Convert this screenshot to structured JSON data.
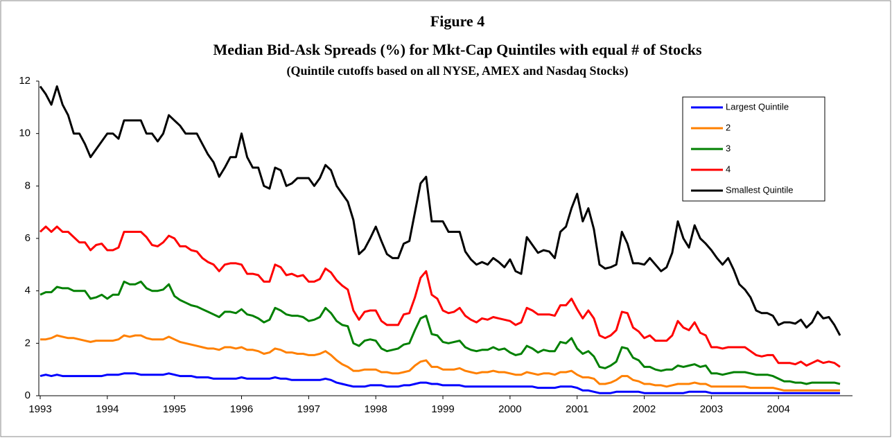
{
  "chart_data": {
    "type": "line",
    "figure_label": "Figure 4",
    "title": "Median Bid-Ask Spreads (%) for Mkt-Cap Quintiles with equal # of Stocks",
    "subtitle": "(Quintile cutoffs based on all NYSE, AMEX and Nasdaq Stocks)",
    "categories": [
      "1993",
      null,
      null,
      null,
      null,
      null,
      null,
      null,
      null,
      null,
      null,
      null,
      "1994",
      null,
      null,
      null,
      null,
      null,
      null,
      null,
      null,
      null,
      null,
      null,
      "1995",
      null,
      null,
      null,
      null,
      null,
      null,
      null,
      null,
      null,
      null,
      null,
      "1996",
      null,
      null,
      null,
      null,
      null,
      null,
      null,
      null,
      null,
      null,
      null,
      "1997",
      null,
      null,
      null,
      null,
      null,
      null,
      null,
      null,
      null,
      null,
      null,
      "1998",
      null,
      null,
      null,
      null,
      null,
      null,
      null,
      null,
      null,
      null,
      null,
      "1999",
      null,
      null,
      null,
      null,
      null,
      null,
      null,
      null,
      null,
      null,
      null,
      "2000",
      null,
      null,
      null,
      null,
      null,
      null,
      null,
      null,
      null,
      null,
      null,
      "2001",
      null,
      null,
      null,
      null,
      null,
      null,
      null,
      null,
      null,
      null,
      null,
      "2002",
      null,
      null,
      null,
      null,
      null,
      null,
      null,
      null,
      null,
      null,
      null,
      "2003",
      null,
      null,
      null,
      null,
      null,
      null,
      null,
      null,
      null,
      null,
      null,
      "2004",
      null,
      null,
      null,
      null,
      null,
      null,
      null,
      null,
      null,
      null,
      null
    ],
    "ylim": [
      0,
      12
    ],
    "yticks": [
      0,
      2,
      4,
      6,
      8,
      10,
      12
    ],
    "legend": "top-right",
    "series": [
      {
        "name": "Largest Quintile",
        "color": "#0000ff",
        "values": [
          0.75,
          0.8,
          0.75,
          0.8,
          0.75,
          0.75,
          0.75,
          0.75,
          0.75,
          0.75,
          0.75,
          0.75,
          0.8,
          0.8,
          0.8,
          0.85,
          0.85,
          0.85,
          0.8,
          0.8,
          0.8,
          0.8,
          0.8,
          0.85,
          0.8,
          0.75,
          0.75,
          0.75,
          0.7,
          0.7,
          0.7,
          0.65,
          0.65,
          0.65,
          0.65,
          0.65,
          0.7,
          0.65,
          0.65,
          0.65,
          0.65,
          0.65,
          0.7,
          0.65,
          0.65,
          0.6,
          0.6,
          0.6,
          0.6,
          0.6,
          0.6,
          0.65,
          0.6,
          0.5,
          0.45,
          0.4,
          0.35,
          0.35,
          0.35,
          0.4,
          0.4,
          0.4,
          0.35,
          0.35,
          0.35,
          0.4,
          0.4,
          0.45,
          0.5,
          0.5,
          0.45,
          0.45,
          0.4,
          0.4,
          0.4,
          0.4,
          0.35,
          0.35,
          0.35,
          0.35,
          0.35,
          0.35,
          0.35,
          0.35,
          0.35,
          0.35,
          0.35,
          0.35,
          0.35,
          0.3,
          0.3,
          0.3,
          0.3,
          0.35,
          0.35,
          0.35,
          0.3,
          0.2,
          0.2,
          0.15,
          0.1,
          0.1,
          0.1,
          0.15,
          0.15,
          0.15,
          0.15,
          0.15,
          0.1,
          0.1,
          0.1,
          0.1,
          0.1,
          0.1,
          0.1,
          0.1,
          0.15,
          0.15,
          0.15,
          0.15,
          0.1,
          0.1,
          0.1,
          0.1,
          0.1,
          0.1,
          0.1,
          0.1,
          0.1,
          0.1,
          0.1,
          0.1,
          0.1,
          0.1,
          0.1,
          0.1,
          0.1,
          0.1,
          0.1,
          0.1,
          0.1,
          0.1,
          0.1,
          0.1
        ]
      },
      {
        "name": "2",
        "color": "#ff8000",
        "values": [
          2.15,
          2.15,
          2.2,
          2.3,
          2.25,
          2.2,
          2.2,
          2.15,
          2.1,
          2.05,
          2.1,
          2.1,
          2.1,
          2.1,
          2.15,
          2.3,
          2.25,
          2.3,
          2.3,
          2.2,
          2.15,
          2.15,
          2.15,
          2.25,
          2.15,
          2.05,
          2.0,
          1.95,
          1.9,
          1.85,
          1.8,
          1.8,
          1.75,
          1.85,
          1.85,
          1.8,
          1.85,
          1.75,
          1.75,
          1.7,
          1.6,
          1.65,
          1.8,
          1.75,
          1.65,
          1.65,
          1.6,
          1.6,
          1.55,
          1.55,
          1.6,
          1.7,
          1.55,
          1.35,
          1.2,
          1.1,
          0.95,
          0.95,
          1.0,
          1.0,
          1.0,
          0.9,
          0.9,
          0.85,
          0.85,
          0.9,
          0.95,
          1.15,
          1.3,
          1.35,
          1.1,
          1.1,
          1.0,
          1.0,
          1.0,
          1.05,
          0.95,
          0.9,
          0.85,
          0.9,
          0.9,
          0.95,
          0.9,
          0.9,
          0.85,
          0.8,
          0.8,
          0.9,
          0.85,
          0.8,
          0.85,
          0.85,
          0.8,
          0.9,
          0.9,
          0.95,
          0.8,
          0.7,
          0.7,
          0.65,
          0.45,
          0.45,
          0.5,
          0.6,
          0.75,
          0.75,
          0.6,
          0.55,
          0.45,
          0.45,
          0.4,
          0.4,
          0.35,
          0.4,
          0.45,
          0.45,
          0.45,
          0.5,
          0.45,
          0.45,
          0.35,
          0.35,
          0.35,
          0.35,
          0.35,
          0.35,
          0.35,
          0.3,
          0.3,
          0.3,
          0.3,
          0.3,
          0.25,
          0.2,
          0.2,
          0.2,
          0.2,
          0.2,
          0.2,
          0.2,
          0.2,
          0.2,
          0.2,
          0.2
        ]
      },
      {
        "name": "3",
        "color": "#008000",
        "values": [
          3.85,
          3.95,
          3.95,
          4.15,
          4.1,
          4.1,
          4.0,
          4.0,
          4.0,
          3.7,
          3.75,
          3.85,
          3.7,
          3.85,
          3.85,
          4.35,
          4.25,
          4.25,
          4.35,
          4.1,
          4.0,
          4.0,
          4.05,
          4.25,
          3.8,
          3.65,
          3.55,
          3.45,
          3.4,
          3.3,
          3.2,
          3.1,
          3.0,
          3.2,
          3.2,
          3.15,
          3.3,
          3.1,
          3.05,
          2.95,
          2.8,
          2.9,
          3.35,
          3.25,
          3.1,
          3.05,
          3.05,
          3.0,
          2.85,
          2.9,
          3.0,
          3.35,
          3.15,
          2.85,
          2.7,
          2.65,
          2.0,
          1.9,
          2.1,
          2.15,
          2.1,
          1.8,
          1.7,
          1.75,
          1.8,
          1.95,
          2.0,
          2.5,
          2.95,
          3.05,
          2.35,
          2.3,
          2.05,
          2.0,
          2.05,
          2.1,
          1.85,
          1.75,
          1.7,
          1.75,
          1.75,
          1.85,
          1.75,
          1.8,
          1.65,
          1.55,
          1.6,
          1.9,
          1.8,
          1.65,
          1.75,
          1.7,
          1.7,
          2.05,
          2.0,
          2.2,
          1.8,
          1.6,
          1.7,
          1.5,
          1.1,
          1.05,
          1.15,
          1.3,
          1.85,
          1.8,
          1.45,
          1.35,
          1.1,
          1.1,
          1.0,
          0.95,
          1.0,
          1.0,
          1.15,
          1.1,
          1.15,
          1.2,
          1.1,
          1.15,
          0.85,
          0.85,
          0.8,
          0.85,
          0.9,
          0.9,
          0.9,
          0.85,
          0.8,
          0.8,
          0.8,
          0.75,
          0.65,
          0.55,
          0.55,
          0.5,
          0.5,
          0.45,
          0.5,
          0.5,
          0.5,
          0.5,
          0.5,
          0.45
        ]
      },
      {
        "name": "4",
        "color": "#ff0000",
        "values": [
          6.25,
          6.45,
          6.25,
          6.45,
          6.25,
          6.25,
          6.05,
          5.85,
          5.85,
          5.55,
          5.75,
          5.8,
          5.55,
          5.55,
          5.65,
          6.25,
          6.25,
          6.25,
          6.25,
          6.05,
          5.75,
          5.7,
          5.85,
          6.1,
          6.0,
          5.7,
          5.7,
          5.55,
          5.5,
          5.25,
          5.1,
          5.0,
          4.75,
          5.0,
          5.05,
          5.05,
          5.0,
          4.65,
          4.65,
          4.6,
          4.35,
          4.35,
          5.0,
          4.9,
          4.6,
          4.65,
          4.55,
          4.6,
          4.35,
          4.35,
          4.45,
          4.85,
          4.7,
          4.4,
          4.2,
          4.05,
          3.25,
          2.9,
          3.2,
          3.25,
          3.25,
          2.85,
          2.7,
          2.7,
          2.7,
          3.1,
          3.15,
          3.75,
          4.5,
          4.75,
          3.85,
          3.7,
          3.25,
          3.15,
          3.2,
          3.35,
          3.05,
          2.9,
          2.8,
          2.95,
          2.9,
          3.0,
          2.95,
          2.9,
          2.85,
          2.7,
          2.8,
          3.35,
          3.25,
          3.1,
          3.1,
          3.1,
          3.05,
          3.45,
          3.45,
          3.7,
          3.3,
          2.95,
          3.25,
          2.95,
          2.3,
          2.2,
          2.3,
          2.5,
          3.2,
          3.15,
          2.6,
          2.45,
          2.2,
          2.3,
          2.1,
          2.1,
          2.1,
          2.3,
          2.85,
          2.6,
          2.5,
          2.8,
          2.4,
          2.3,
          1.85,
          1.85,
          1.8,
          1.85,
          1.85,
          1.85,
          1.85,
          1.7,
          1.55,
          1.5,
          1.55,
          1.55,
          1.25,
          1.25,
          1.25,
          1.2,
          1.3,
          1.15,
          1.25,
          1.35,
          1.25,
          1.3,
          1.25,
          1.1
        ]
      },
      {
        "name": "Smallest Quintile",
        "color": "#000000",
        "values": [
          11.8,
          11.5,
          11.1,
          11.8,
          11.1,
          10.7,
          10.0,
          10.0,
          9.6,
          9.1,
          9.4,
          9.7,
          10.0,
          10.0,
          9.8,
          10.5,
          10.5,
          10.5,
          10.5,
          10.0,
          10.0,
          9.7,
          10.0,
          10.7,
          10.5,
          10.3,
          10.0,
          10.0,
          10.0,
          9.6,
          9.2,
          8.9,
          8.35,
          8.7,
          9.1,
          9.1,
          10.0,
          9.1,
          8.7,
          8.7,
          8.0,
          7.9,
          8.7,
          8.6,
          8.0,
          8.1,
          8.3,
          8.3,
          8.3,
          8.0,
          8.3,
          8.8,
          8.6,
          8.0,
          7.7,
          7.4,
          6.7,
          5.4,
          5.6,
          6.0,
          6.45,
          5.9,
          5.4,
          5.25,
          5.25,
          5.8,
          5.9,
          7.0,
          8.1,
          8.35,
          6.65,
          6.65,
          6.65,
          6.25,
          6.25,
          6.25,
          5.5,
          5.2,
          5.0,
          5.1,
          5.0,
          5.25,
          5.1,
          4.9,
          5.2,
          4.75,
          4.65,
          6.05,
          5.75,
          5.45,
          5.55,
          5.5,
          5.25,
          6.25,
          6.45,
          7.15,
          7.7,
          6.65,
          7.15,
          6.35,
          5.0,
          4.85,
          4.9,
          5.0,
          6.25,
          5.8,
          5.05,
          5.05,
          5.0,
          5.25,
          5.0,
          4.75,
          4.9,
          5.45,
          6.65,
          6.0,
          5.65,
          6.5,
          6.0,
          5.8,
          5.55,
          5.25,
          5.0,
          5.25,
          4.8,
          4.25,
          4.05,
          3.75,
          3.25,
          3.15,
          3.15,
          3.05,
          2.7,
          2.8,
          2.8,
          2.75,
          2.9,
          2.6,
          2.8,
          3.2,
          2.95,
          3.0,
          2.7,
          2.3
        ]
      }
    ]
  }
}
